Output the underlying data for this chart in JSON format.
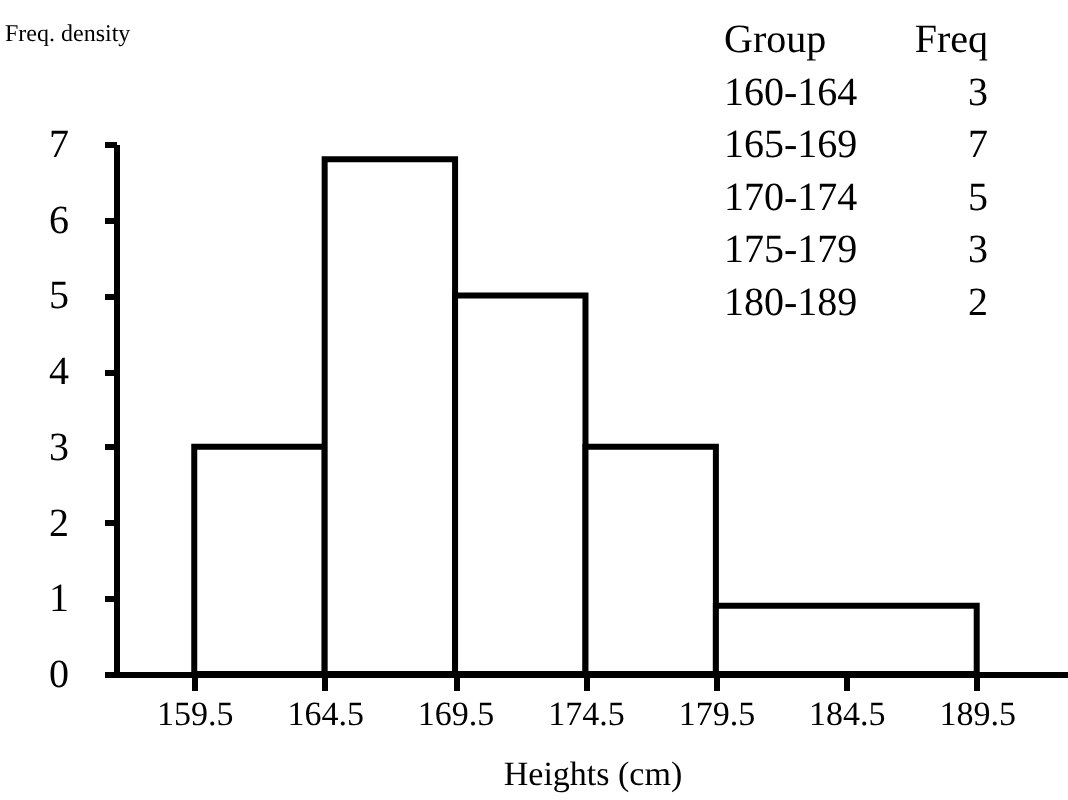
{
  "chart_data": {
    "type": "histogram",
    "ylabel": "Freq. density",
    "xlabel": "Heights (cm)",
    "bins": [
      159.5,
      164.5,
      169.5,
      174.5,
      179.5,
      189.5
    ],
    "values": [
      3,
      6.8,
      5,
      3,
      0.9
    ],
    "color": "#ffffff",
    "xlim": [
      156.5,
      193
    ],
    "xticks": [
      159.5,
      164.5,
      169.5,
      174.5,
      179.5,
      184.5,
      189.5
    ],
    "ylim": [
      0,
      7
    ],
    "yticks": [
      0,
      1,
      2,
      3,
      4,
      5,
      6,
      7
    ],
    "grid": false,
    "annotations": [
      "Group Freq",
      "160-164 3",
      "165-169 7",
      "170-174 5",
      "175-179 3",
      "180-189 2"
    ]
  }
}
